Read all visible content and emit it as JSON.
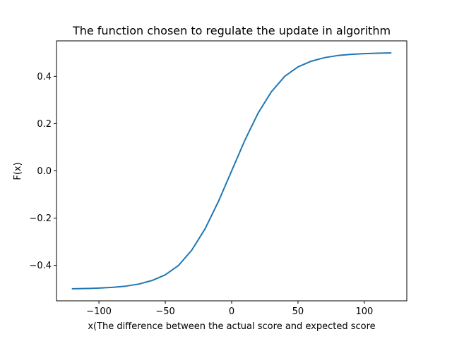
{
  "chart_data": {
    "type": "line",
    "title": "The function chosen to regulate the update in algorithm",
    "xlabel": "x(The difference between the actual score and expected score",
    "ylabel": "F(x)",
    "xlim": [
      -132,
      132
    ],
    "ylim": [
      -0.55,
      0.55
    ],
    "x_ticks": [
      -100,
      -50,
      0,
      50,
      100
    ],
    "x_tick_labels": [
      "−100",
      "−50",
      "0",
      "50",
      "100"
    ],
    "y_ticks": [
      -0.4,
      -0.2,
      0.0,
      0.2,
      0.4
    ],
    "y_tick_labels": [
      "−0.4",
      "−0.2",
      "0.0",
      "0.2",
      "0.4"
    ],
    "grid": false,
    "series": [
      {
        "color": "#1f77b4",
        "x": [
          -120,
          -110,
          -100,
          -90,
          -80,
          -70,
          -60,
          -50,
          -40,
          -30,
          -20,
          -10,
          0,
          10,
          20,
          30,
          40,
          50,
          60,
          70,
          80,
          90,
          100,
          110,
          120
        ],
        "y": [
          -0.499,
          -0.498,
          -0.496,
          -0.493,
          -0.488,
          -0.479,
          -0.464,
          -0.44,
          -0.4,
          -0.335,
          -0.245,
          -0.13,
          0.0,
          0.13,
          0.245,
          0.335,
          0.4,
          0.44,
          0.464,
          0.479,
          0.488,
          0.493,
          0.496,
          0.498,
          0.499
        ]
      }
    ]
  }
}
